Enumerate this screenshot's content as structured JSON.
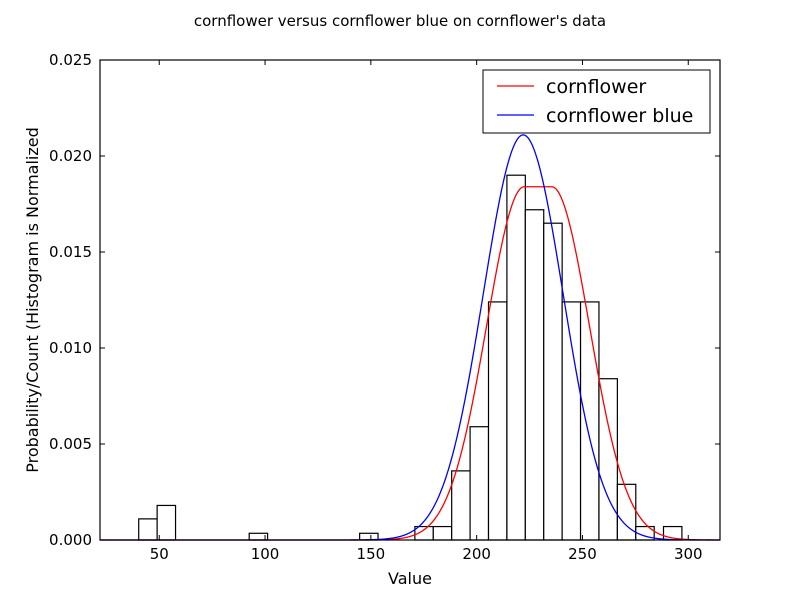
{
  "chart_data": {
    "type": "histogram",
    "title": "cornflower versus cornflower blue on cornflower's data",
    "xlabel": "Value",
    "ylabel": "Probability/Count (Histogram is Normalized",
    "xlim": [
      22,
      315
    ],
    "ylim": [
      0,
      0.025
    ],
    "xticks": [
      50,
      100,
      150,
      200,
      250,
      300
    ],
    "yticks": [
      0.0,
      0.005,
      0.01,
      0.015,
      0.02,
      0.025
    ],
    "grid": false,
    "legend_position": "top-right",
    "histogram": {
      "bin_width": 8.7,
      "bins": [
        {
          "x0": 40.3,
          "value": 0.0011
        },
        {
          "x0": 49.0,
          "value": 0.0018
        },
        {
          "x0": 92.5,
          "value": 0.00035
        },
        {
          "x0": 144.7,
          "value": 0.00035
        },
        {
          "x0": 170.8,
          "value": 0.0007
        },
        {
          "x0": 179.5,
          "value": 0.0007
        },
        {
          "x0": 188.2,
          "value": 0.0036
        },
        {
          "x0": 196.9,
          "value": 0.0059
        },
        {
          "x0": 205.6,
          "value": 0.0124
        },
        {
          "x0": 214.3,
          "value": 0.019
        },
        {
          "x0": 223.0,
          "value": 0.0172
        },
        {
          "x0": 231.7,
          "value": 0.0165
        },
        {
          "x0": 240.4,
          "value": 0.0124
        },
        {
          "x0": 249.1,
          "value": 0.0124
        },
        {
          "x0": 257.8,
          "value": 0.0084
        },
        {
          "x0": 266.5,
          "value": 0.0029
        },
        {
          "x0": 275.2,
          "value": 0.0007
        },
        {
          "x0": 288.3,
          "value": 0.0007
        }
      ]
    },
    "series": [
      {
        "name": "cornflower",
        "color": "#ff0000",
        "kind": "flat-top-gaussian",
        "peak": 0.0184,
        "plateau": [
          222.5,
          235.5
        ],
        "sigma": 17.8
      },
      {
        "name": "cornflower blue",
        "color": "#0000ff",
        "kind": "gaussian",
        "peak": 0.0211,
        "mean": 222,
        "sigma": 18.9
      }
    ]
  }
}
